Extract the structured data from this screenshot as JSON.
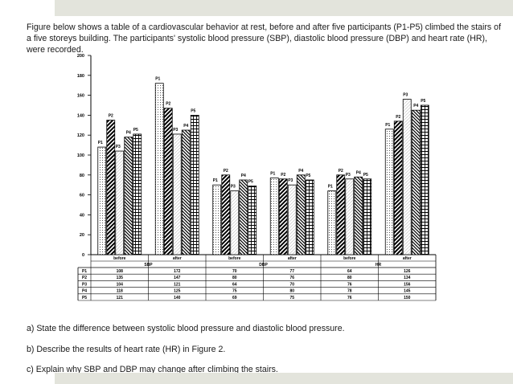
{
  "intro": "Figure below shows a table of a cardiovascular behavior at rest, before and after five participants (P1-P5) climbed the stairs of a five storeys building. The participants' systolic blood pressure (SBP), diastolic blood pressure (DBP) and heart rate (HR), were recorded.",
  "questions": {
    "a": "a)  State the difference between systolic blood pressure and diastolic blood pressure.",
    "b": "b)  Describe the results of heart rate (HR) in Figure 2.",
    "c": "c)  Explain why SBP and DBP may change after climbing the stairs."
  },
  "colors": {
    "band": "#e3e4dc",
    "ink": "#000000"
  },
  "chart_data": {
    "type": "bar",
    "title": "",
    "xlabel": "",
    "ylabel": "",
    "ylim": [
      0,
      200
    ],
    "yticks": [
      0,
      20,
      40,
      60,
      80,
      100,
      120,
      140,
      160,
      180,
      200
    ],
    "grid": false,
    "groups": [
      "SBP",
      "DBP",
      "HR"
    ],
    "categories": [
      "before",
      "after",
      "before",
      "after",
      "before",
      "after"
    ],
    "series": [
      {
        "name": "P1",
        "values": [
          108,
          172,
          70,
          77,
          64,
          126
        ],
        "pattern": "dots"
      },
      {
        "name": "P2",
        "values": [
          135,
          147,
          80,
          76,
          80,
          134
        ],
        "pattern": "diag"
      },
      {
        "name": "P3",
        "values": [
          104,
          121,
          64,
          70,
          76,
          156
        ],
        "pattern": "light"
      },
      {
        "name": "P4",
        "values": [
          118,
          125,
          75,
          80,
          78,
          145
        ],
        "pattern": "hatch"
      },
      {
        "name": "P5",
        "values": [
          121,
          140,
          69,
          75,
          76,
          150
        ],
        "pattern": "grid"
      }
    ]
  }
}
